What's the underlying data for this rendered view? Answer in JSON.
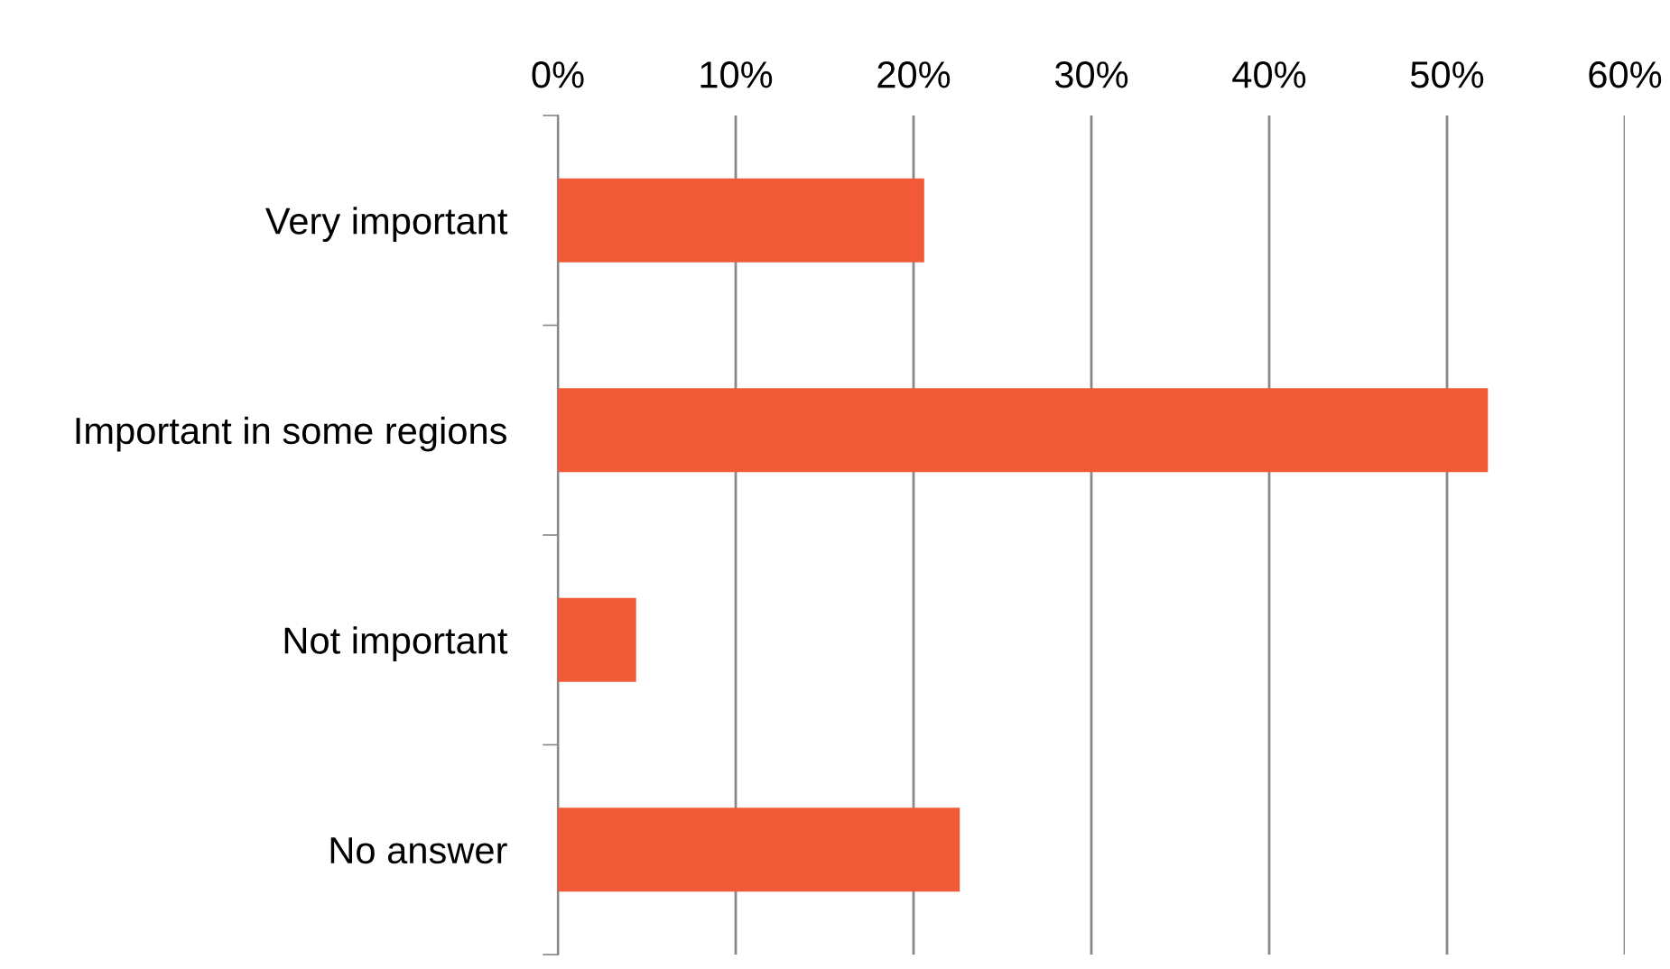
{
  "chart_data": {
    "type": "bar",
    "orientation": "horizontal",
    "categories": [
      "Very important",
      "Important in some regions",
      "Not important",
      "No answer"
    ],
    "values": [
      20.6,
      52.3,
      4.4,
      22.6
    ],
    "color": "#f15a37",
    "xlim": [
      0,
      60
    ],
    "xticks": [
      {
        "value": 0,
        "label": "0%"
      },
      {
        "value": 10,
        "label": "10%"
      },
      {
        "value": 20,
        "label": "20%"
      },
      {
        "value": 30,
        "label": "30%"
      },
      {
        "value": 40,
        "label": "40%"
      },
      {
        "value": 50,
        "label": "50%"
      },
      {
        "value": 60,
        "label": "60%"
      }
    ],
    "grid": "x",
    "legend": false
  }
}
